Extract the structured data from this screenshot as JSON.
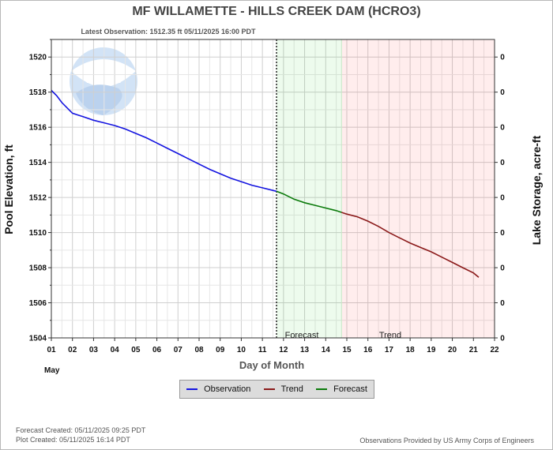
{
  "chart_data": {
    "type": "line",
    "title": "MF WILLAMETTE - HILLS CREEK DAM  (HCRO3)",
    "subtitle": "Latest Observation:  1512.35 ft 05/11/2025 16:00 PDT",
    "xlabel": "Day of Month",
    "ylabel": "Pool Elevation, ft",
    "y2label": "Lake Storage, acre-ft",
    "month_label": "May",
    "x_ticks": [
      "01",
      "02",
      "03",
      "04",
      "05",
      "06",
      "07",
      "08",
      "09",
      "10",
      "11",
      "12",
      "13",
      "14",
      "15",
      "16",
      "17",
      "18",
      "19",
      "20",
      "21",
      "22"
    ],
    "xlim": [
      1,
      22
    ],
    "ylim": [
      1504,
      1521
    ],
    "y_ticks": [
      1504,
      1506,
      1508,
      1510,
      1512,
      1514,
      1516,
      1518,
      1520
    ],
    "y2_ticks": [
      "0",
      "0",
      "0",
      "0",
      "0",
      "0",
      "0",
      "0",
      "0"
    ],
    "grid": true,
    "forecast_start": 11.67,
    "forecast_end": 14.75,
    "zone_labels": {
      "forecast": "Forecast",
      "trend": "Trend"
    },
    "series": [
      {
        "name": "Observation",
        "color": "#1414e0",
        "x": [
          1.0,
          1.25,
          1.5,
          1.75,
          2.0,
          2.25,
          2.5,
          3.0,
          3.5,
          4.0,
          4.5,
          5.0,
          5.5,
          6.0,
          6.5,
          7.0,
          7.5,
          8.0,
          8.5,
          9.0,
          9.5,
          10.0,
          10.5,
          11.0,
          11.5,
          11.67
        ],
        "y": [
          1518.1,
          1517.8,
          1517.4,
          1517.1,
          1516.8,
          1516.7,
          1516.6,
          1516.4,
          1516.25,
          1516.1,
          1515.9,
          1515.65,
          1515.4,
          1515.1,
          1514.8,
          1514.5,
          1514.2,
          1513.9,
          1513.6,
          1513.35,
          1513.1,
          1512.9,
          1512.7,
          1512.55,
          1512.4,
          1512.35
        ]
      },
      {
        "name": "Forecast",
        "color": "#0a7a0a",
        "x": [
          11.67,
          12.0,
          12.5,
          13.0,
          13.5,
          14.0,
          14.5,
          14.75
        ],
        "y": [
          1512.35,
          1512.2,
          1511.9,
          1511.7,
          1511.55,
          1511.4,
          1511.25,
          1511.15
        ]
      },
      {
        "name": "Trend",
        "color": "#8b1a1a",
        "x": [
          14.75,
          15.0,
          15.5,
          16.0,
          16.5,
          17.0,
          17.5,
          18.0,
          18.5,
          19.0,
          19.5,
          20.0,
          20.5,
          21.0,
          21.25
        ],
        "y": [
          1511.15,
          1511.05,
          1510.9,
          1510.65,
          1510.35,
          1510.0,
          1509.7,
          1509.4,
          1509.15,
          1508.9,
          1508.6,
          1508.3,
          1508.0,
          1507.7,
          1507.45
        ]
      }
    ],
    "legend": {
      "placement": "bottom-center",
      "items": [
        {
          "label": "Observation",
          "color": "#1414e0"
        },
        {
          "label": "Trend",
          "color": "#8b1a1a"
        },
        {
          "label": "Forecast",
          "color": "#0a7a0a"
        }
      ]
    }
  },
  "footer": {
    "forecast_created": "Forecast Created: 05/11/2025 09:25 PDT",
    "plot_created": "Plot Created: 05/11/2025 16:14 PDT",
    "provider": "Observations Provided by US Army Corps of Engineers"
  },
  "watermark": {
    "text": "NOAA"
  }
}
